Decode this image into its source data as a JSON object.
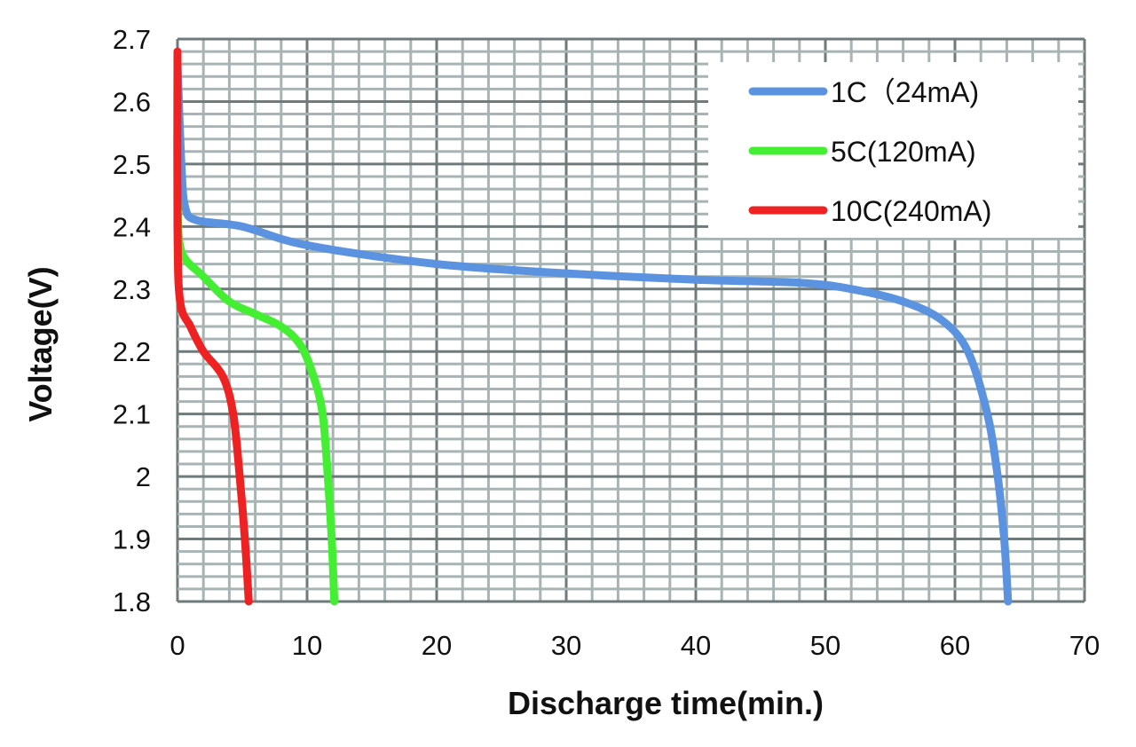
{
  "chart_data": {
    "type": "line",
    "title": "",
    "xlabel": "Discharge time(min.)",
    "ylabel": "Voltage(V)",
    "xlim": [
      0,
      70
    ],
    "ylim": [
      1.8,
      2.7
    ],
    "xticks": [
      "0",
      "10",
      "20",
      "30",
      "40",
      "50",
      "60",
      "70"
    ],
    "yticks": [
      "1.8",
      "1.9",
      "2",
      "2.1",
      "2.2",
      "2.3",
      "2.4",
      "2.5",
      "2.6",
      "2.7"
    ],
    "grid": true,
    "legend_position": "top-right",
    "series": [
      {
        "name": "1C（24mA)",
        "color": "#5b93e0",
        "x": [
          0,
          0.3,
          0.6,
          1.5,
          5,
          10,
          20,
          30,
          40,
          48,
          52,
          56,
          59,
          61,
          62.5,
          63.3,
          63.8,
          64.1
        ],
        "y": [
          2.66,
          2.5,
          2.43,
          2.41,
          2.4,
          2.37,
          2.34,
          2.325,
          2.315,
          2.31,
          2.3,
          2.28,
          2.25,
          2.2,
          2.1,
          2.0,
          1.9,
          1.8
        ]
      },
      {
        "name": "5C(120mA)",
        "color": "#44ee33",
        "x": [
          0,
          0.3,
          2,
          4,
          6,
          8,
          9.5,
          10.5,
          11.2,
          11.6,
          11.9,
          12.1
        ],
        "y": [
          2.44,
          2.36,
          2.32,
          2.28,
          2.26,
          2.24,
          2.21,
          2.16,
          2.1,
          2.0,
          1.9,
          1.8
        ]
      },
      {
        "name": "10C(240mA)",
        "color": "#ee2222",
        "x": [
          0,
          0,
          0.2,
          1,
          2,
          3.5,
          4.3,
          4.8,
          5.2,
          5.5
        ],
        "y": [
          2.68,
          2.4,
          2.28,
          2.24,
          2.2,
          2.16,
          2.1,
          2.0,
          1.9,
          1.8
        ]
      }
    ]
  }
}
